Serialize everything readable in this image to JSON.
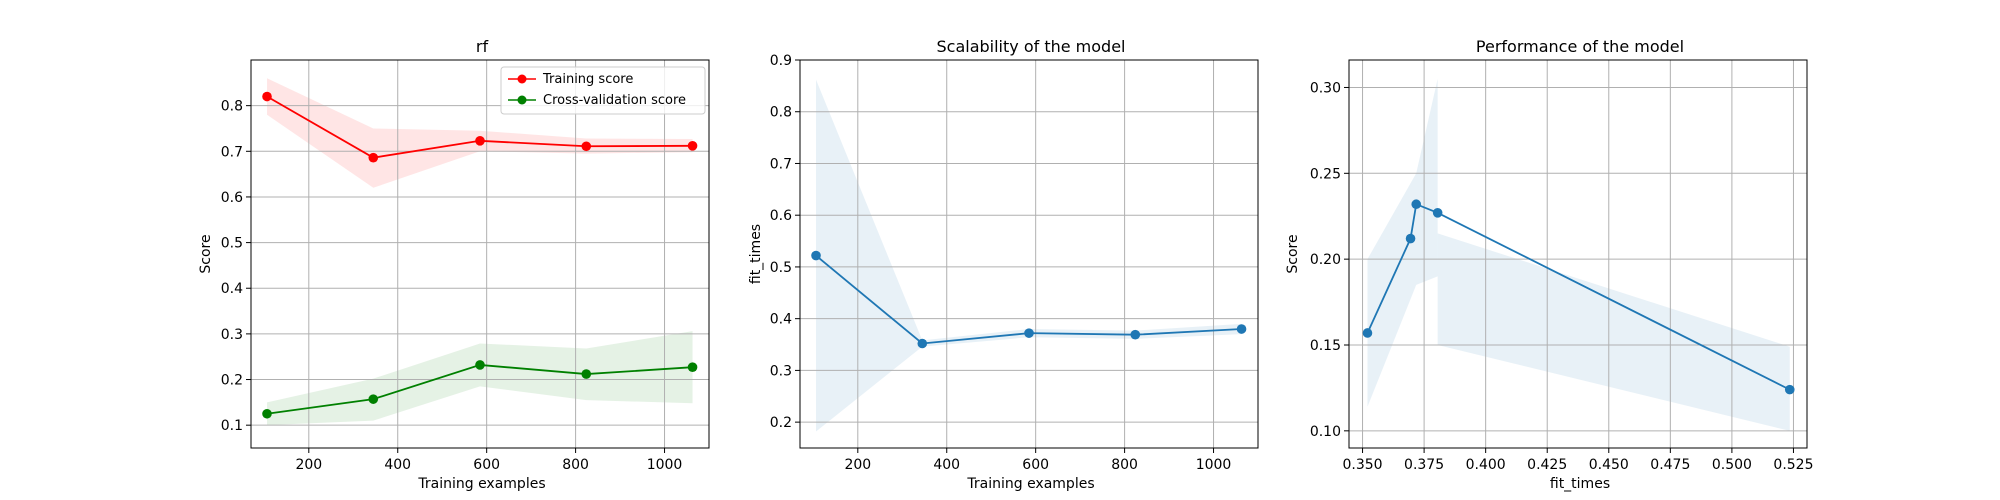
{
  "chart_data": [
    {
      "type": "line",
      "title": "rf",
      "xlabel": "Training examples",
      "ylabel": "Score",
      "xlim": [
        70,
        1100
      ],
      "ylim": [
        0.05,
        0.9
      ],
      "xticks": [
        200,
        400,
        600,
        800,
        1000
      ],
      "yticks": [
        0.1,
        0.2,
        0.3,
        0.4,
        0.5,
        0.6,
        0.7,
        0.8
      ],
      "grid": true,
      "legend": "top-right",
      "x": [
        106,
        345,
        585,
        824,
        1063
      ],
      "series": [
        {
          "name": "Training score",
          "color": "#ff0000",
          "values": [
            0.82,
            0.686,
            0.723,
            0.711,
            0.712
          ],
          "band_low": [
            0.78,
            0.62,
            0.7,
            0.695,
            0.698
          ],
          "band_high": [
            0.86,
            0.75,
            0.745,
            0.728,
            0.727
          ]
        },
        {
          "name": "Cross-validation score",
          "color": "#008000",
          "values": [
            0.125,
            0.157,
            0.232,
            0.212,
            0.227
          ],
          "band_low": [
            0.1,
            0.11,
            0.185,
            0.155,
            0.148
          ],
          "band_high": [
            0.15,
            0.202,
            0.279,
            0.268,
            0.306
          ]
        }
      ]
    },
    {
      "type": "line",
      "title": "Scalability of the model",
      "xlabel": "Training examples",
      "ylabel": "fit_times",
      "xlim": [
        70,
        1100
      ],
      "ylim": [
        0.15,
        0.9
      ],
      "xticks": [
        200,
        400,
        600,
        800,
        1000
      ],
      "yticks": [
        0.2,
        0.3,
        0.4,
        0.5,
        0.6,
        0.7,
        0.8,
        0.9
      ],
      "grid": true,
      "x": [
        106,
        345,
        585,
        824,
        1063
      ],
      "series": [
        {
          "color": "#1f77b4",
          "values": [
            0.522,
            0.352,
            0.372,
            0.369,
            0.38
          ],
          "band_low": [
            0.182,
            0.346,
            0.364,
            0.361,
            0.37
          ],
          "band_high": [
            0.862,
            0.358,
            0.38,
            0.377,
            0.39
          ]
        }
      ]
    },
    {
      "type": "line",
      "title": "Performance of the model",
      "xlabel": "fit_times",
      "ylabel": "Score",
      "xlim": [
        0.3445,
        0.5305
      ],
      "ylim": [
        0.09,
        0.316
      ],
      "xticks": [
        0.35,
        0.375,
        0.4,
        0.425,
        0.45,
        0.475,
        0.5,
        0.525
      ],
      "xtick_labels": [
        "0.350",
        "0.375",
        "0.400",
        "0.425",
        "0.450",
        "0.475",
        "0.500",
        "0.525"
      ],
      "yticks": [
        0.1,
        0.15,
        0.2,
        0.25,
        0.3
      ],
      "ytick_labels": [
        "0.10",
        "0.15",
        "0.20",
        "0.25",
        "0.30"
      ],
      "grid": true,
      "series": [
        {
          "color": "#1f77b4",
          "x": [
            0.352,
            0.3695,
            0.3718,
            0.3805,
            0.5235
          ],
          "values": [
            0.157,
            0.212,
            0.232,
            0.227,
            0.124
          ],
          "bands": [
            {
              "x": [
                0.352,
                0.3718,
                0.3805
              ],
              "low": [
                0.114,
                0.185,
                0.19
              ],
              "high": [
                0.2,
                0.25,
                0.305
              ]
            },
            {
              "x": [
                0.3805,
                0.5235
              ],
              "low": [
                0.15,
                0.1
              ],
              "high": [
                0.215,
                0.149
              ]
            }
          ]
        }
      ]
    }
  ]
}
